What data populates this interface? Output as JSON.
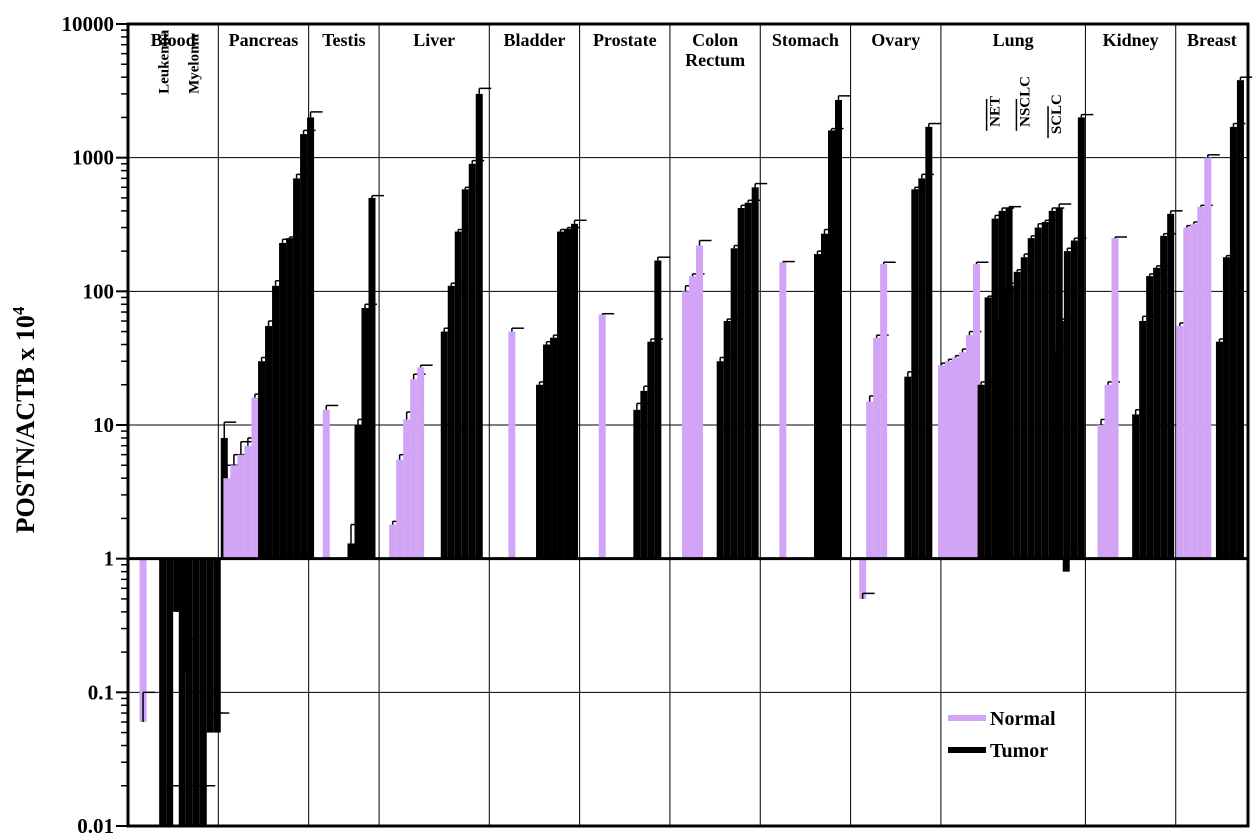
{
  "colors": {
    "normal": "#d2a4f5",
    "tumor": "#000000",
    "axis": "#000000",
    "grid": "#000000"
  },
  "chart_data": {
    "type": "bar",
    "yscale": "log",
    "baseline": 1,
    "ylim": [
      0.01,
      10000
    ],
    "grid": true,
    "xlabel": "",
    "ylabel": "POSTN/ACTB x 10",
    "ylabel_superscript": "4",
    "yticks": [
      {
        "value": 10000,
        "label": "10000"
      },
      {
        "value": 1000,
        "label": "1000"
      },
      {
        "value": 100,
        "label": "100"
      },
      {
        "value": 10,
        "label": "10"
      },
      {
        "value": 1,
        "label": "1"
      },
      {
        "value": 0.1,
        "label": "0.1"
      },
      {
        "value": 0.01,
        "label": "0.01"
      }
    ],
    "legend": {
      "position": "bottom-right",
      "entries": [
        {
          "name": "Normal",
          "series": "normal"
        },
        {
          "name": "Tumor",
          "series": "tumor"
        }
      ]
    },
    "groups": [
      {
        "name": "Blood",
        "name_lines": [
          "Blood"
        ],
        "start": 0,
        "end": 1,
        "sublabels": [
          {
            "text": "Leukemia",
            "x": 0.45,
            "y": 3000
          },
          {
            "text": "Myeloma",
            "x": 0.78,
            "y": 3000
          }
        ],
        "bars": [
          {
            "series": "normal",
            "values": [
              0.06
            ],
            "errors": [
              0.1
            ]
          },
          {
            "series": "tumor",
            "values": [
              0.01,
              0.01,
              0.4,
              0.14
            ],
            "errors": [
              0.02,
              0.02,
              0.5,
              0.25
            ]
          },
          {
            "series": "tumor",
            "values": [
              0.01,
              0.01,
              0.01,
              0.01,
              0.05,
              0.05,
              8
            ],
            "errors": [
              0.02,
              0.02,
              0.02,
              0.02,
              0.07,
              0.07,
              10.5
            ]
          }
        ]
      },
      {
        "name": "Pancreas",
        "name_lines": [
          "Pancreas"
        ],
        "start": 1,
        "end": 2,
        "bars": [
          {
            "series": "normal",
            "values": [
              4,
              5,
              6,
              7,
              16
            ],
            "errors": [
              5,
              6,
              7.5,
              8,
              17
            ]
          },
          {
            "series": "tumor",
            "values": [
              30,
              55,
              110,
              230,
              250,
              700,
              1500,
              2000
            ],
            "errors": [
              32,
              60,
              120,
              245,
              255,
              750,
              1600,
              2200
            ]
          }
        ]
      },
      {
        "name": "Testis",
        "name_lines": [
          "Testis"
        ],
        "start": 2,
        "end": 2.78,
        "bars": [
          {
            "series": "normal",
            "values": [
              13
            ],
            "errors": [
              14
            ]
          },
          {
            "series": "tumor",
            "values": [
              1.3,
              10,
              75,
              500
            ],
            "errors": [
              1.8,
              11,
              80,
              520
            ]
          }
        ]
      },
      {
        "name": "Liver",
        "name_lines": [
          "Liver"
        ],
        "start": 2.78,
        "end": 4,
        "bars": [
          {
            "series": "normal",
            "values": [
              1.8,
              5.5,
              11,
              22,
              27
            ],
            "errors": [
              1.9,
              6,
              12.5,
              24,
              28
            ]
          },
          {
            "series": "tumor",
            "values": [
              50,
              110,
              280,
              580,
              900,
              3000
            ],
            "errors": [
              53,
              115,
              290,
              600,
              950,
              3300
            ]
          }
        ]
      },
      {
        "name": "Bladder",
        "name_lines": [
          "Bladder"
        ],
        "start": 4,
        "end": 5,
        "bars": [
          {
            "series": "normal",
            "values": [
              50
            ],
            "errors": [
              53
            ]
          },
          {
            "series": "tumor",
            "values": [
              20,
              40,
              45,
              280,
              290,
              320
            ],
            "errors": [
              21,
              42,
              47,
              290,
              300,
              340
            ]
          }
        ]
      },
      {
        "name": "Prostate",
        "name_lines": [
          "Prostate"
        ],
        "start": 5,
        "end": 6,
        "bars": [
          {
            "series": "normal",
            "values": [
              67
            ],
            "errors": [
              68
            ]
          },
          {
            "series": "tumor",
            "values": [
              13,
              18,
              42,
              170
            ],
            "errors": [
              14.5,
              19.5,
              44,
              180
            ]
          }
        ]
      },
      {
        "name": "Colon Rectum",
        "name_lines": [
          "Colon",
          "Rectum"
        ],
        "start": 6,
        "end": 7,
        "bars": [
          {
            "series": "normal",
            "values": [
              100,
              130,
              220
            ],
            "errors": [
              110,
              135,
              240
            ]
          },
          {
            "series": "tumor",
            "values": [
              30,
              60,
              210,
              420,
              460,
              600
            ],
            "errors": [
              32,
              62,
              220,
              440,
              480,
              640
            ]
          }
        ]
      },
      {
        "name": "Stomach",
        "name_lines": [
          "Stomach"
        ],
        "start": 7,
        "end": 8,
        "bars": [
          {
            "series": "normal",
            "values": [
              165
            ],
            "errors": [
              167
            ]
          },
          {
            "series": "tumor",
            "values": [
              190,
              270,
              1600,
              2700
            ],
            "errors": [
              200,
              290,
              1650,
              2900
            ]
          }
        ]
      },
      {
        "name": "Ovary",
        "name_lines": [
          "Ovary"
        ],
        "start": 8,
        "end": 9,
        "bars": [
          {
            "series": "normal",
            "values": [
              0.5,
              15,
              45,
              160
            ],
            "errors": [
              0.55,
              16.5,
              47,
              165
            ]
          },
          {
            "series": "tumor",
            "values": [
              23,
              580,
              700,
              1700
            ],
            "errors": [
              25,
              600,
              750,
              1800
            ]
          }
        ]
      },
      {
        "name": "Lung",
        "name_lines": [
          "Lung"
        ],
        "start": 9,
        "end": 10.6,
        "sublabels": [
          {
            "text": "NET",
            "x": 9.65,
            "y": 1700,
            "bracket": true
          },
          {
            "text": "NSCLC",
            "x": 9.98,
            "y": 1700,
            "bracket": true
          },
          {
            "text": "SCLC",
            "x": 10.33,
            "y": 1500,
            "bracket": true
          }
        ],
        "bars": [
          {
            "series": "normal",
            "values": [
              28,
              30,
              32,
              35,
              47,
              160
            ],
            "errors": [
              29,
              31,
              33,
              37,
              50,
              165
            ]
          },
          {
            "series": "tumor",
            "values": [
              20,
              90,
              350,
              400,
              420
            ],
            "errors": [
              21,
              92,
              370,
              420,
              430
            ]
          },
          {
            "series": "tumor",
            "values": [
              58,
              100,
              110,
              140,
              180,
              250,
              300,
              330,
              400,
              420,
              0.8
            ],
            "errors": [
              60,
              105,
              115,
              145,
              190,
              260,
              320,
              340,
              420,
              450,
              1.2
            ]
          },
          {
            "series": "tumor",
            "values": [
              35,
              60,
              200,
              240,
              2000
            ],
            "errors": [
              37,
              62,
              210,
              250,
              2100
            ]
          }
        ]
      },
      {
        "name": "Kidney",
        "name_lines": [
          "Kidney"
        ],
        "start": 10.6,
        "end": 11.6,
        "bars": [
          {
            "series": "normal",
            "values": [
              10,
              20,
              250
            ],
            "errors": [
              11,
              21,
              255
            ]
          },
          {
            "series": "tumor",
            "values": [
              12,
              60,
              130,
              150,
              260,
              380
            ],
            "errors": [
              13,
              65,
              135,
              155,
              270,
              400
            ]
          }
        ]
      },
      {
        "name": "Breast",
        "name_lines": [
          "Breast"
        ],
        "start": 11.6,
        "end": 12.4,
        "bars": [
          {
            "series": "normal",
            "values": [
              55,
              300,
              320,
              430,
              1000
            ],
            "errors": [
              58,
              310,
              330,
              440,
              1050
            ]
          },
          {
            "series": "tumor",
            "values": [
              42,
              180,
              1700,
              3800
            ],
            "errors": [
              44,
              185,
              1800,
              4000
            ]
          }
        ]
      }
    ]
  }
}
